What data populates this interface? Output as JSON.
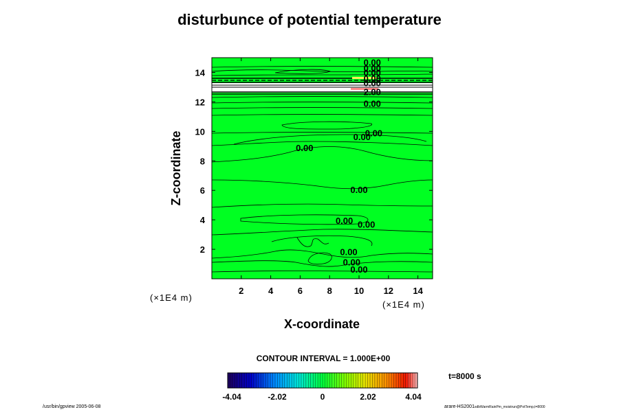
{
  "chart_data": {
    "type": "contour",
    "title": "disturbunce of potential temperature",
    "xlabel": "X-coordinate",
    "ylabel": "Z-coordinate",
    "x_unit": "(×1E4 m)",
    "y_unit": "(×1E4 m)",
    "xlim": [
      0,
      15
    ],
    "ylim": [
      0,
      15
    ],
    "x_ticks": [
      "2",
      "4",
      "6",
      "8",
      "10",
      "12",
      "14"
    ],
    "y_ticks": [
      "2",
      "4",
      "6",
      "8",
      "10",
      "12",
      "14"
    ],
    "contour_interval_text": "CONTOUR INTERVAL = 1.000E+00",
    "time_label": "t=8000 s",
    "colorbar": {
      "min": -4.04,
      "max": 4.04,
      "tick_labels": [
        "-4.04",
        "-2.02",
        "0",
        "2.02",
        "4.04"
      ],
      "tick_values": [
        -4.04,
        -2.02,
        0,
        2.02,
        4.04
      ]
    },
    "contour_labels": [
      {
        "x": 10.9,
        "y": 14.7,
        "text": "0.00"
      },
      {
        "x": 10.9,
        "y": 14.3,
        "text": "0.00"
      },
      {
        "x": 10.9,
        "y": 14.0,
        "text": "0.00"
      },
      {
        "x": 10.9,
        "y": 13.6,
        "text": "0.00"
      },
      {
        "x": 10.9,
        "y": 13.3,
        "text": "0.00"
      },
      {
        "x": 10.9,
        "y": 12.7,
        "text": "2.00"
      },
      {
        "x": 10.9,
        "y": 11.9,
        "text": "0.00"
      },
      {
        "x": 11.0,
        "y": 9.9,
        "text": "0.00"
      },
      {
        "x": 10.2,
        "y": 9.65,
        "text": "0.00"
      },
      {
        "x": 6.3,
        "y": 8.9,
        "text": "0.00"
      },
      {
        "x": 10.0,
        "y": 6.05,
        "text": "0.00"
      },
      {
        "x": 9.0,
        "y": 3.95,
        "text": "0.00"
      },
      {
        "x": 10.5,
        "y": 3.7,
        "text": "0.00"
      },
      {
        "x": 9.3,
        "y": 1.85,
        "text": "0.00"
      },
      {
        "x": 9.5,
        "y": 1.15,
        "text": "0.00"
      },
      {
        "x": 10.0,
        "y": 0.65,
        "text": "0.00"
      }
    ]
  },
  "footer": {
    "left": "/usr/bin/gpview 2005-06-08",
    "right_main": "arare-HS2001",
    "right_small": "sdbWarmRainPm_moistrun@PotTemp,t=8000"
  }
}
